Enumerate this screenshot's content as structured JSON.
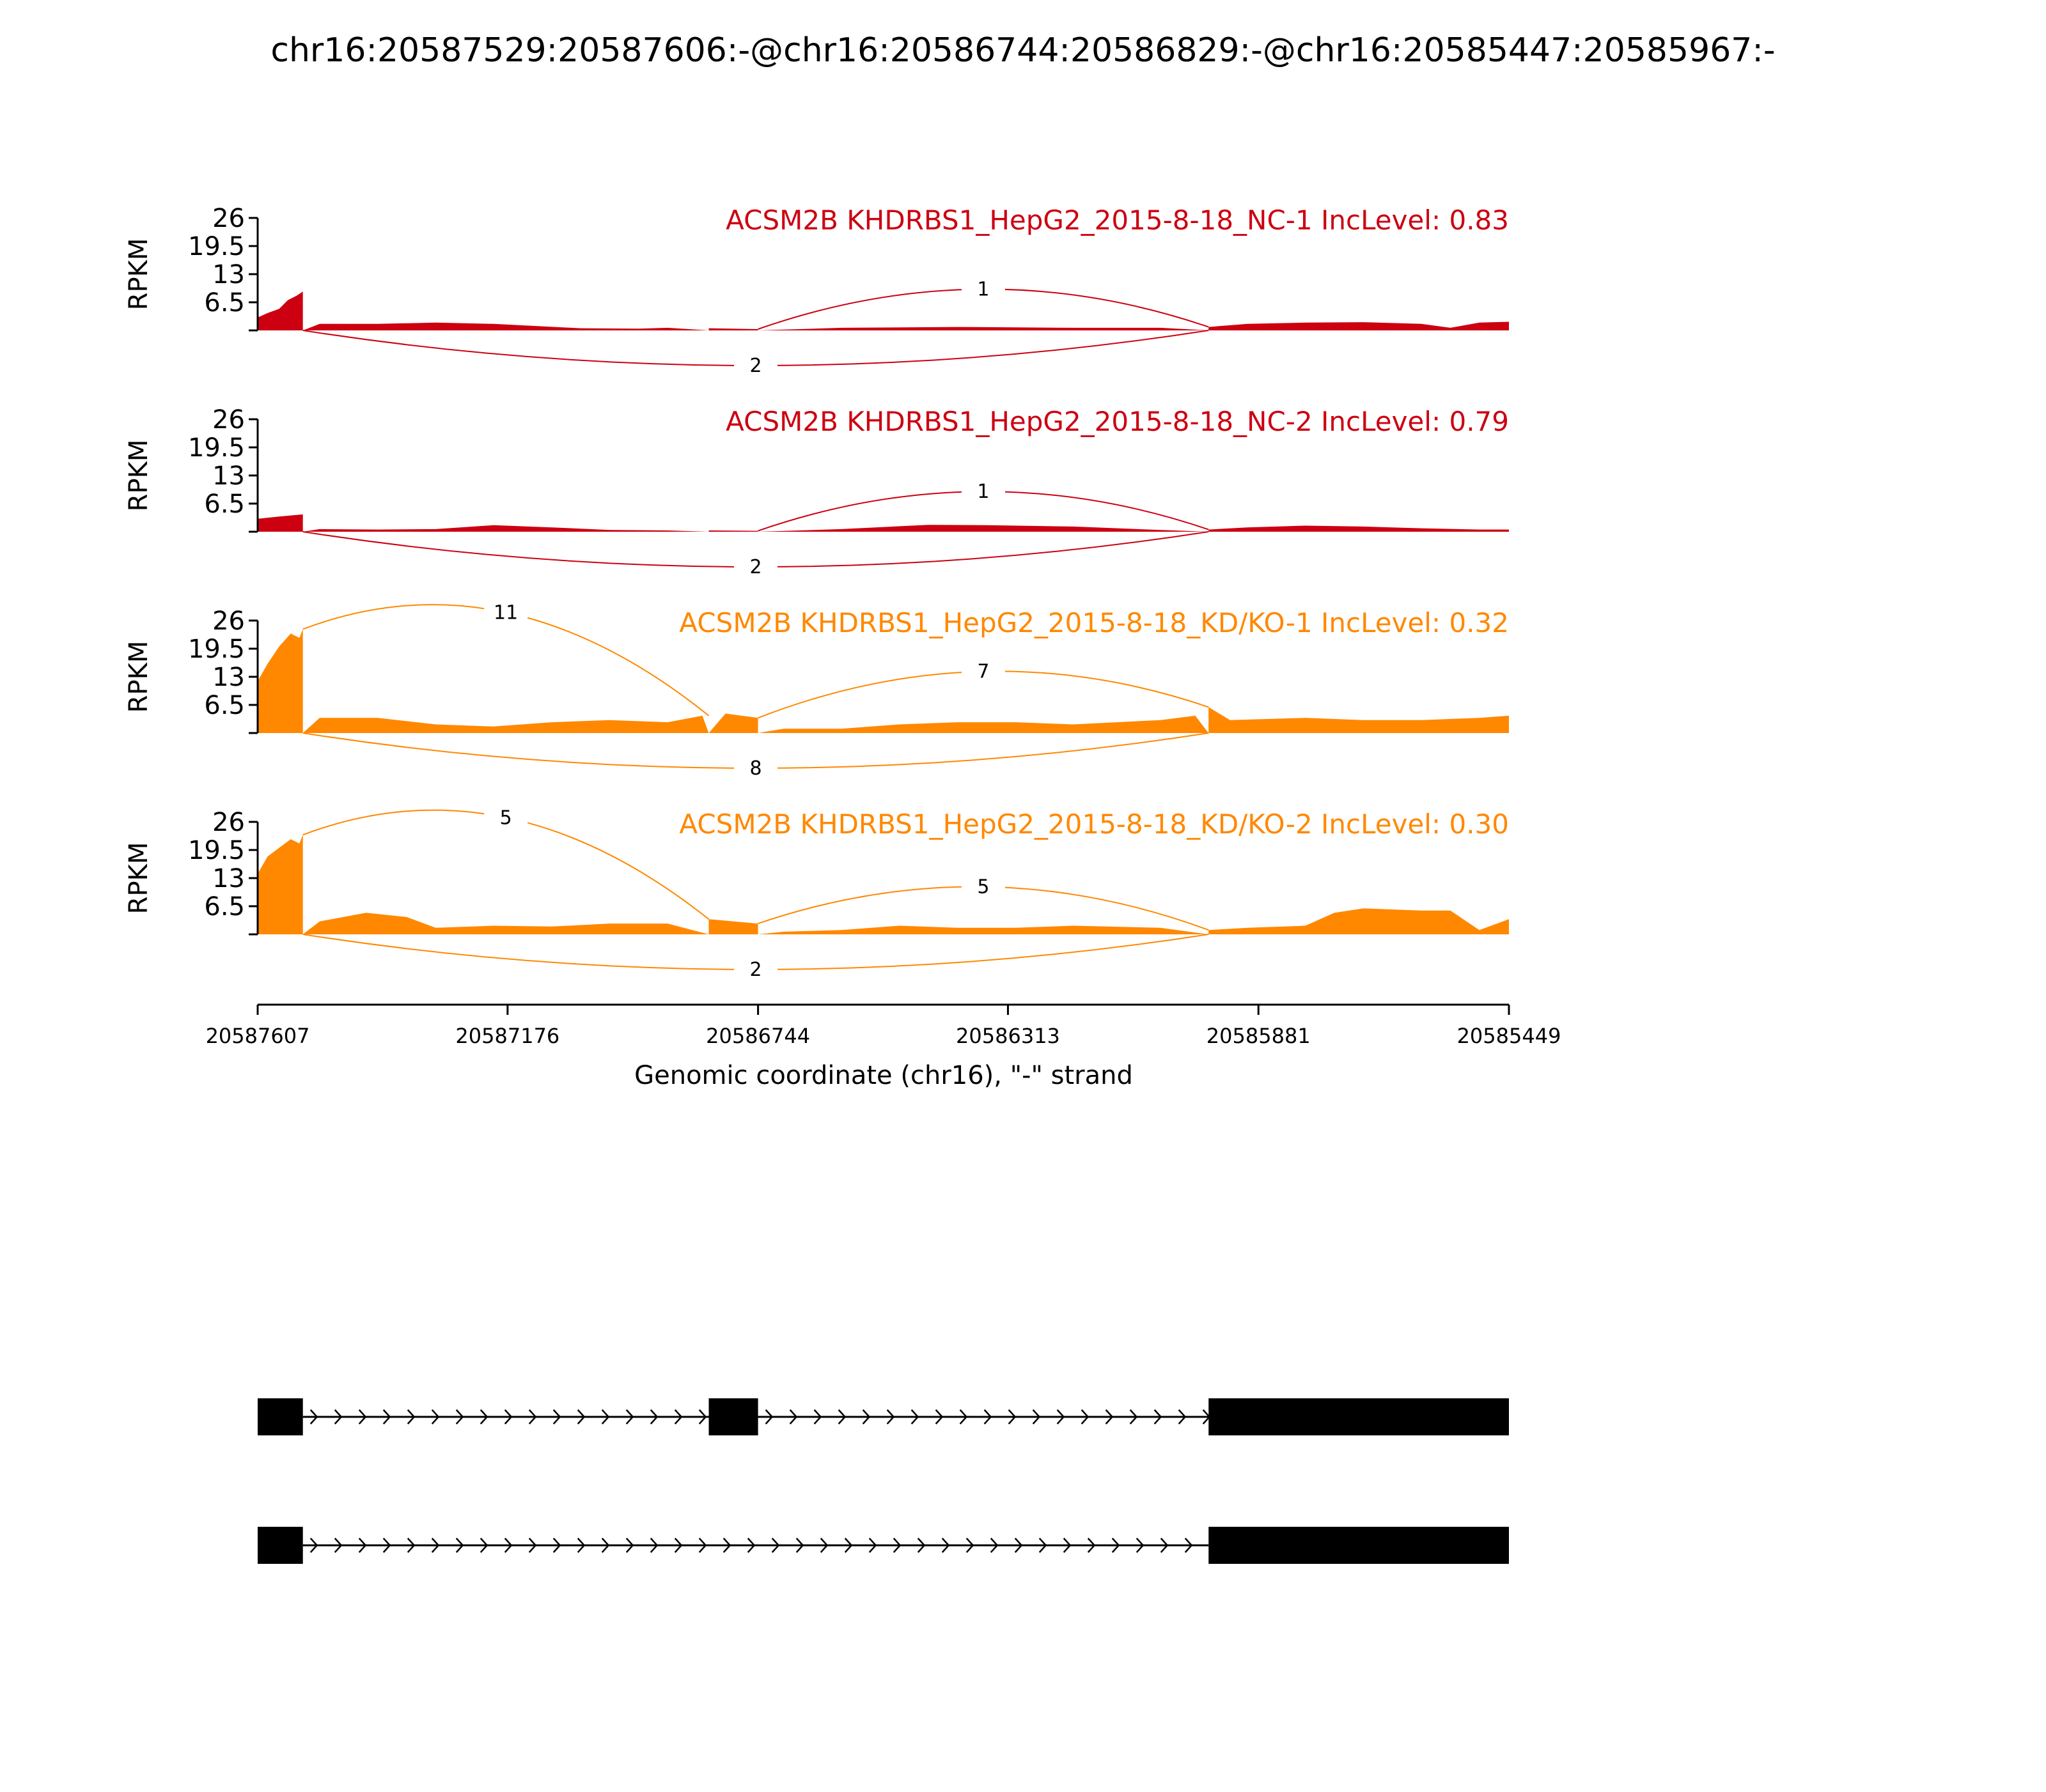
{
  "figure_title": "chr16:20587529:20587606:-@chr16:20586744:20586829:-@chr16:20585447:20585967:-",
  "colors": {
    "nc": "#cc0011",
    "kd": "#ff8800",
    "axis": "#000000",
    "gene": "#000000"
  },
  "chart_data": {
    "type": "area",
    "title": "chr16:20587529:20587606:-@chr16:20586744:20586829:-@chr16:20585447:20585967:-",
    "xlabel": "Genomic coordinate (chr16), \"-\" strand",
    "x_ticks": [
      "20587607",
      "20587176",
      "20586744",
      "20586313",
      "20585881",
      "20585449"
    ],
    "x_range": [
      20587607,
      20585449
    ],
    "ylabel": "RPKM",
    "y_ticks": [
      "6.5",
      "13",
      "19.5",
      "26"
    ],
    "ylim": [
      0,
      26
    ],
    "exons": [
      [
        20587607,
        20587529
      ],
      [
        20586829,
        20586744
      ],
      [
        20585967,
        20585449
      ]
    ],
    "panels": [
      {
        "label": "ACSM2B KHDRBS1_HepG2_2015-8-18_NC-1 IncLevel: 0.83",
        "group": "nc",
        "coverage": [
          [
            20587607,
            3.0
          ],
          [
            20587590,
            4.0
          ],
          [
            20587570,
            5.0
          ],
          [
            20587555,
            7.0
          ],
          [
            20587540,
            8.0
          ],
          [
            20587529,
            9.0
          ],
          [
            20587500,
            1.5
          ],
          [
            20587400,
            1.5
          ],
          [
            20587300,
            1.8
          ],
          [
            20587200,
            1.5
          ],
          [
            20587050,
            0.5
          ],
          [
            20586950,
            0.4
          ],
          [
            20586900,
            0.6
          ],
          [
            20586829,
            0.5
          ],
          [
            20586744,
            0.3
          ],
          [
            20586600,
            0.6
          ],
          [
            20586400,
            0.8
          ],
          [
            20586200,
            0.6
          ],
          [
            20586050,
            0.6
          ],
          [
            20585967,
            0.8
          ],
          [
            20585900,
            1.5
          ],
          [
            20585800,
            1.8
          ],
          [
            20585700,
            1.9
          ],
          [
            20585600,
            1.5
          ],
          [
            20585550,
            0.6
          ],
          [
            20585500,
            1.8
          ],
          [
            20585449,
            2.0
          ]
        ],
        "junctions": [
          {
            "from": 20586744,
            "to": 20585967,
            "count": "1",
            "side": "above"
          },
          {
            "from": 20587529,
            "to": 20585967,
            "count": "2",
            "side": "below"
          }
        ]
      },
      {
        "label": "ACSM2B KHDRBS1_HepG2_2015-8-18_NC-2 IncLevel: 0.79",
        "group": "nc",
        "coverage": [
          [
            20587607,
            3.0
          ],
          [
            20587570,
            3.5
          ],
          [
            20587529,
            4.0
          ],
          [
            20587500,
            0.6
          ],
          [
            20587400,
            0.5
          ],
          [
            20587300,
            0.6
          ],
          [
            20587200,
            1.5
          ],
          [
            20587100,
            1.0
          ],
          [
            20587000,
            0.4
          ],
          [
            20586900,
            0.3
          ],
          [
            20586829,
            0.3
          ],
          [
            20586744,
            0.2
          ],
          [
            20586600,
            0.6
          ],
          [
            20586450,
            1.6
          ],
          [
            20586350,
            1.5
          ],
          [
            20586200,
            1.2
          ],
          [
            20586050,
            0.4
          ],
          [
            20585967,
            0.5
          ],
          [
            20585900,
            1.0
          ],
          [
            20585800,
            1.4
          ],
          [
            20585700,
            1.2
          ],
          [
            20585600,
            0.8
          ],
          [
            20585500,
            0.5
          ],
          [
            20585449,
            0.5
          ]
        ],
        "junctions": [
          {
            "from": 20586744,
            "to": 20585967,
            "count": "1",
            "side": "above"
          },
          {
            "from": 20587529,
            "to": 20585967,
            "count": "2",
            "side": "below"
          }
        ]
      },
      {
        "label": "ACSM2B KHDRBS1_HepG2_2015-8-18_KD/KO-1 IncLevel: 0.32",
        "group": "kd",
        "coverage": [
          [
            20587607,
            12.0
          ],
          [
            20587590,
            16.0
          ],
          [
            20587570,
            20.0
          ],
          [
            20587550,
            23.0
          ],
          [
            20587535,
            22.0
          ],
          [
            20587529,
            24.0
          ],
          [
            20587500,
            3.5
          ],
          [
            20587400,
            3.5
          ],
          [
            20587300,
            2.0
          ],
          [
            20587200,
            1.5
          ],
          [
            20587100,
            2.5
          ],
          [
            20587000,
            3.0
          ],
          [
            20586900,
            2.5
          ],
          [
            20586840,
            4.0
          ],
          [
            20586800,
            4.5
          ],
          [
            20586744,
            3.5
          ],
          [
            20586700,
            1.0
          ],
          [
            20586600,
            1.0
          ],
          [
            20586500,
            2.0
          ],
          [
            20586400,
            2.5
          ],
          [
            20586300,
            2.5
          ],
          [
            20586200,
            2.0
          ],
          [
            20586050,
            3.0
          ],
          [
            20585990,
            4.0
          ],
          [
            20585967,
            6.0
          ],
          [
            20585930,
            3.0
          ],
          [
            20585800,
            3.5
          ],
          [
            20585700,
            3.0
          ],
          [
            20585600,
            3.0
          ],
          [
            20585500,
            3.5
          ],
          [
            20585449,
            4.0
          ]
        ],
        "junctions": [
          {
            "from": 20587529,
            "to": 20586829,
            "count": "11",
            "side": "above"
          },
          {
            "from": 20586744,
            "to": 20585967,
            "count": "7",
            "side": "above"
          },
          {
            "from": 20587529,
            "to": 20585967,
            "count": "8",
            "side": "below"
          }
        ]
      },
      {
        "label": "ACSM2B KHDRBS1_HepG2_2015-8-18_KD/KO-2 IncLevel: 0.30",
        "group": "kd",
        "coverage": [
          [
            20587607,
            14.0
          ],
          [
            20587590,
            18.0
          ],
          [
            20587570,
            20.0
          ],
          [
            20587550,
            22.0
          ],
          [
            20587535,
            21.0
          ],
          [
            20587529,
            23.0
          ],
          [
            20587500,
            3.0
          ],
          [
            20587420,
            5.0
          ],
          [
            20587350,
            4.0
          ],
          [
            20587300,
            1.5
          ],
          [
            20587200,
            2.0
          ],
          [
            20587100,
            1.8
          ],
          [
            20587000,
            2.5
          ],
          [
            20586900,
            2.5
          ],
          [
            20586829,
            3.5
          ],
          [
            20586744,
            2.5
          ],
          [
            20586700,
            0.6
          ],
          [
            20586600,
            1.0
          ],
          [
            20586500,
            2.0
          ],
          [
            20586400,
            1.5
          ],
          [
            20586300,
            1.5
          ],
          [
            20586200,
            2.0
          ],
          [
            20586050,
            1.5
          ],
          [
            20585967,
            1.0
          ],
          [
            20585900,
            1.5
          ],
          [
            20585800,
            2.0
          ],
          [
            20585750,
            5.0
          ],
          [
            20585700,
            6.0
          ],
          [
            20585600,
            5.5
          ],
          [
            20585550,
            5.5
          ],
          [
            20585500,
            1.0
          ],
          [
            20585449,
            3.5
          ]
        ],
        "junctions": [
          {
            "from": 20587529,
            "to": 20586829,
            "count": "5",
            "side": "above"
          },
          {
            "from": 20586744,
            "to": 20585967,
            "count": "5",
            "side": "above"
          },
          {
            "from": 20587529,
            "to": 20585967,
            "count": "2",
            "side": "below"
          }
        ]
      }
    ],
    "isoforms": [
      {
        "exons": [
          [
            20587607,
            20587529
          ],
          [
            20586829,
            20586744
          ],
          [
            20585967,
            20585449
          ]
        ]
      },
      {
        "exons": [
          [
            20587607,
            20587529
          ],
          [
            20585967,
            20585449
          ]
        ]
      }
    ]
  }
}
